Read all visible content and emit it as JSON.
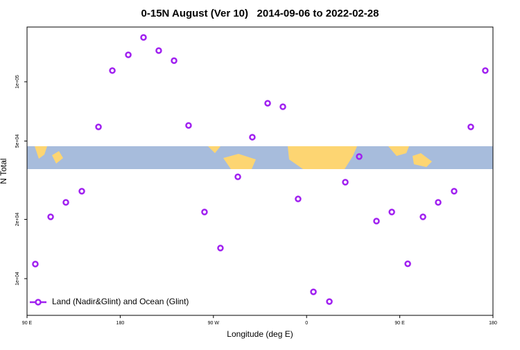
{
  "chart_data": {
    "type": "scatter",
    "title": "0-15N August (Ver 10)   2014-09-06 to 2022-02-28",
    "x_label": "Longitude (deg E)",
    "y_label": "N Total",
    "yscale": "log",
    "legend_position": "bottom-left",
    "x": [
      98.0,
      112.8,
      127.5,
      142.9,
      159.0,
      172.4,
      187.8,
      202.5,
      217.2,
      232.0,
      246.0,
      261.4,
      276.8,
      293.6,
      307.6,
      322.4,
      337.1,
      351.8,
      366.6,
      382.0,
      397.4,
      410.8,
      427.5,
      442.3,
      457.7,
      472.4,
      487.1,
      502.5,
      518.6,
      532.6
    ],
    "series": [
      {
        "name": "Land (Nadir&Glint) and Ocean (Glint)",
        "color": "#a020f0",
        "values": [
          11860,
          20600,
          24400,
          27800,
          59000,
          114000,
          137000,
          168000,
          144000,
          128000,
          60000,
          21800,
          14300,
          32900,
          52300,
          77800,
          74700,
          25400,
          8570,
          7650,
          30900,
          41700,
          19600,
          21800,
          11900,
          20600,
          24400,
          27800,
          59000,
          114000
        ]
      }
    ],
    "xlim": [
      90,
      540
    ],
    "xticks": [
      {
        "value": 90,
        "label": "90 E"
      },
      180,
      {
        "value": 270,
        "label": "90 W"
      },
      {
        "value": 360,
        "label": "0"
      },
      {
        "value": 450,
        "label": "90 E"
      },
      {
        "value": 540,
        "label": "180"
      }
    ],
    "ylim": [
      6510,
      189700
    ],
    "yticks": [
      {
        "value": 10000,
        "label": "1e+04"
      },
      {
        "value": 20000,
        "label": "2e+04"
      },
      {
        "value": 50000,
        "label": "5e+04"
      },
      {
        "value": 100000,
        "label": "1e+05"
      }
    ]
  }
}
